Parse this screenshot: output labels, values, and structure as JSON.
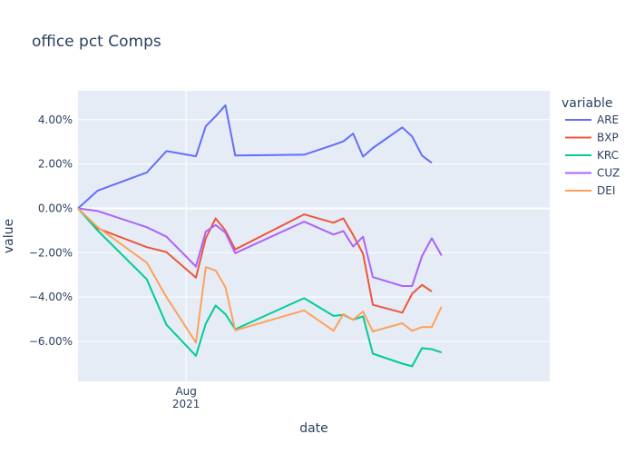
{
  "chart_data": {
    "type": "line",
    "title": "office pct Comps",
    "xlabel": "date",
    "ylabel": "value",
    "legend_title": "variable",
    "legend_position": "right",
    "grid": true,
    "x_tick_label_line1": "Aug",
    "x_tick_label_line2": "2021",
    "y_ticks": [
      -0.06,
      -0.04,
      -0.02,
      0.0,
      0.02,
      0.04
    ],
    "y_tick_labels": [
      "−6.00%",
      "−4.00%",
      "−2.00%",
      "0.00%",
      "2.00%",
      "4.00%"
    ],
    "ylim": [
      -0.078,
      0.053
    ],
    "xlim": [
      "2021-07-21",
      "2021-09-07"
    ],
    "x_tick_dates": [
      "2021-08-01"
    ],
    "x": [
      "2021-07-21",
      "2021-07-23",
      "2021-07-28",
      "2021-07-30",
      "2021-08-02",
      "2021-08-03",
      "2021-08-04",
      "2021-08-05",
      "2021-08-06",
      "2021-08-13",
      "2021-08-16",
      "2021-08-17",
      "2021-08-18",
      "2021-08-19",
      "2021-08-20",
      "2021-08-23",
      "2021-08-24",
      "2021-08-25",
      "2021-08-26",
      "2021-08-27",
      "2021-08-30",
      "2021-08-31",
      "2021-09-01",
      "2021-09-02",
      "2021-09-03",
      "2021-09-07"
    ],
    "series": [
      {
        "name": "ARE",
        "color": "#636efa",
        "values": [
          0.0,
          0.008,
          0.0162,
          0.0258,
          0.0235,
          0.037,
          0.0415,
          0.0465,
          0.0238,
          0.0242,
          0.0286,
          0.0302,
          0.0337,
          0.0233,
          0.0272,
          0.0365,
          0.0324,
          0.0238,
          0.0205,
          null,
          null,
          null,
          null,
          null,
          null,
          null
        ]
      },
      {
        "name": "BXP",
        "color": "#EF553B",
        "values": [
          0.0,
          -0.009,
          -0.0175,
          -0.0197,
          -0.0312,
          -0.0135,
          -0.0045,
          -0.01,
          -0.0185,
          -0.0027,
          -0.0065,
          -0.0045,
          -0.012,
          -0.0205,
          -0.0435,
          -0.047,
          -0.0385,
          -0.0345,
          -0.0375,
          null,
          null,
          null,
          null,
          null,
          null,
          null
        ]
      },
      {
        "name": "KRC",
        "color": "#00cc96",
        "values": [
          0.0,
          -0.01,
          -0.032,
          -0.0525,
          -0.0665,
          -0.052,
          -0.0438,
          -0.0477,
          -0.0545,
          -0.0405,
          -0.0485,
          -0.048,
          -0.0502,
          -0.0487,
          -0.0655,
          -0.07,
          -0.0712,
          -0.063,
          -0.0635,
          -0.065,
          null,
          null,
          null,
          null,
          null,
          null
        ]
      },
      {
        "name": "CUZ",
        "color": "#ab63fa",
        "values": [
          0.0,
          -0.0012,
          -0.0085,
          -0.0128,
          -0.0262,
          -0.0105,
          -0.0075,
          -0.011,
          -0.0202,
          -0.006,
          -0.0118,
          -0.0102,
          -0.0172,
          -0.0128,
          -0.031,
          -0.035,
          -0.035,
          -0.0215,
          -0.0135,
          -0.0213,
          null,
          null,
          null,
          null,
          null,
          null
        ]
      },
      {
        "name": "DEI",
        "color": "#FFA15A",
        "values": [
          0.0,
          -0.0085,
          -0.0245,
          -0.04,
          -0.0605,
          -0.0265,
          -0.028,
          -0.0355,
          -0.055,
          -0.046,
          -0.0552,
          -0.0477,
          -0.0502,
          -0.0465,
          -0.0555,
          -0.0518,
          -0.0552,
          -0.0535,
          -0.0535,
          -0.0443,
          null,
          null,
          null,
          null,
          null,
          null
        ]
      }
    ]
  }
}
